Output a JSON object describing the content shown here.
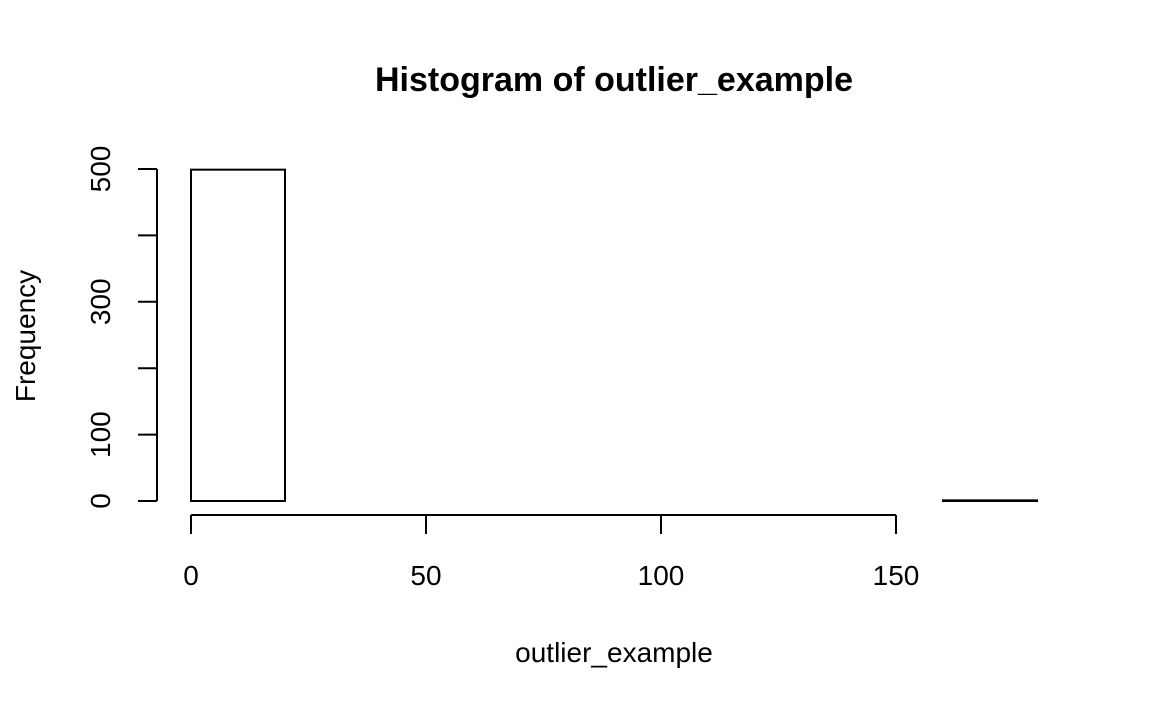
{
  "chart_data": {
    "type": "bar",
    "title": "Histogram of outlier_example",
    "xlabel": "outlier_example",
    "ylabel": "Frequency",
    "bins": [
      {
        "start": 0,
        "end": 20,
        "count": 499
      },
      {
        "start": 20,
        "end": 40,
        "count": 0
      },
      {
        "start": 40,
        "end": 60,
        "count": 0
      },
      {
        "start": 60,
        "end": 80,
        "count": 0
      },
      {
        "start": 80,
        "end": 100,
        "count": 0
      },
      {
        "start": 100,
        "end": 120,
        "count": 0
      },
      {
        "start": 120,
        "end": 140,
        "count": 0
      },
      {
        "start": 140,
        "end": 160,
        "count": 0
      },
      {
        "start": 160,
        "end": 180,
        "count": 1
      }
    ],
    "xlim": [
      0,
      180
    ],
    "ylim": [
      0,
      500
    ],
    "x_ticks": [
      0,
      50,
      100,
      150
    ],
    "x_tick_labels": [
      "0",
      "50",
      "100",
      "150"
    ],
    "y_ticks": [
      0,
      100,
      200,
      300,
      400,
      500
    ],
    "y_tick_labels": [
      "0",
      "100",
      "",
      "300",
      "",
      "500"
    ],
    "grid": false,
    "colors": {
      "bar_fill": "#ffffff",
      "bar_stroke": "#000000"
    }
  }
}
